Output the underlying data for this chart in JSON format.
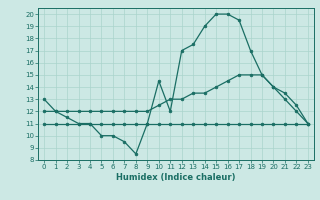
{
  "xlabel": "Humidex (Indice chaleur)",
  "bg_color": "#cce8e4",
  "grid_color": "#aad4cc",
  "line_color": "#1a6e64",
  "xlim": [
    -0.5,
    23.5
  ],
  "ylim": [
    8,
    20.5
  ],
  "xticks": [
    0,
    1,
    2,
    3,
    4,
    5,
    6,
    7,
    8,
    9,
    10,
    11,
    12,
    13,
    14,
    15,
    16,
    17,
    18,
    19,
    20,
    21,
    22,
    23
  ],
  "yticks": [
    8,
    9,
    10,
    11,
    12,
    13,
    14,
    15,
    16,
    17,
    18,
    19,
    20
  ],
  "line1_x": [
    0,
    1,
    2,
    3,
    4,
    5,
    6,
    7,
    8,
    9,
    10,
    11,
    12,
    13,
    14,
    15,
    16,
    17,
    18,
    19,
    20,
    21,
    22,
    23
  ],
  "line1_y": [
    13,
    12,
    11.5,
    11,
    11,
    10,
    10,
    9.5,
    8.5,
    11,
    14.5,
    12,
    17,
    17.5,
    19,
    20,
    20,
    19.5,
    17,
    15,
    14,
    13,
    12,
    11
  ],
  "line2_x": [
    0,
    1,
    2,
    3,
    4,
    5,
    6,
    7,
    8,
    9,
    10,
    11,
    12,
    13,
    14,
    15,
    16,
    17,
    18,
    19,
    20,
    21,
    22,
    23
  ],
  "line2_y": [
    12,
    12,
    12,
    12,
    12,
    12,
    12,
    12,
    12,
    12,
    12.5,
    13,
    13,
    13.5,
    13.5,
    14,
    14.5,
    15,
    15,
    15,
    14,
    13.5,
    12.5,
    11
  ],
  "line3_x": [
    0,
    1,
    2,
    3,
    4,
    5,
    6,
    7,
    8,
    9,
    10,
    11,
    12,
    13,
    14,
    15,
    16,
    17,
    18,
    19,
    20,
    21,
    22,
    23
  ],
  "line3_y": [
    11,
    11,
    11,
    11,
    11,
    11,
    11,
    11,
    11,
    11,
    11,
    11,
    11,
    11,
    11,
    11,
    11,
    11,
    11,
    11,
    11,
    11,
    11,
    11
  ],
  "marker_size": 2.0,
  "line_width": 0.9,
  "tick_fontsize": 5.0,
  "xlabel_fontsize": 6.0
}
